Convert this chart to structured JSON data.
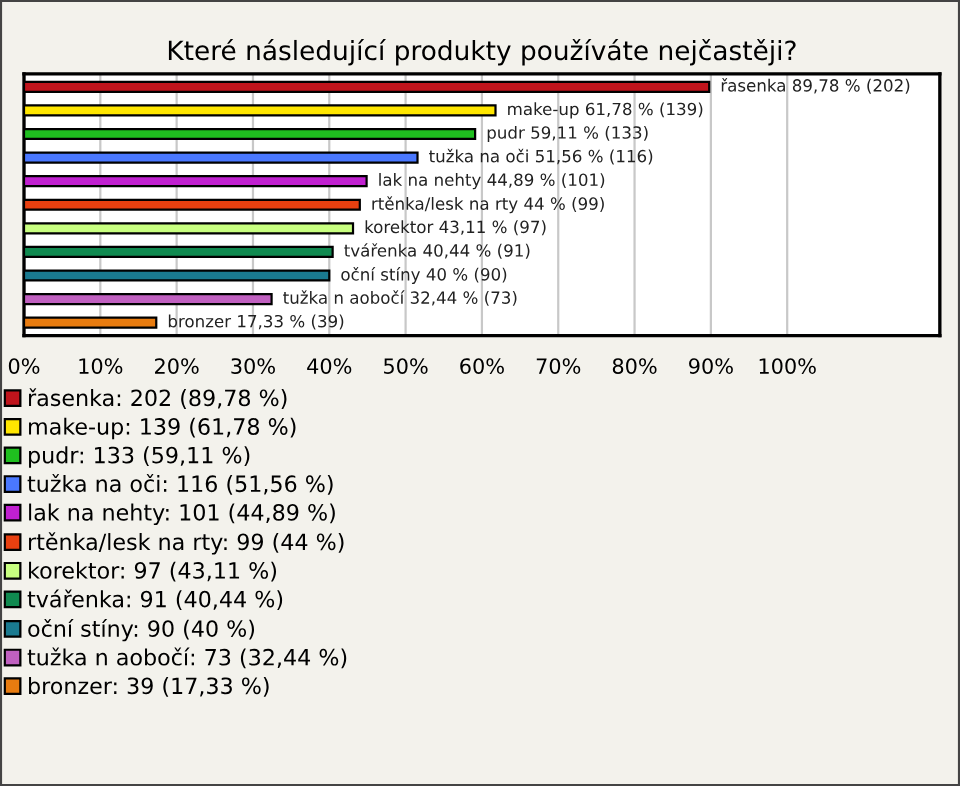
{
  "chart_data": {
    "type": "bar",
    "orientation": "horizontal",
    "title": "Které následující produkty používáte nejčastěji?",
    "categories": [
      null,
      null,
      null,
      null,
      null,
      null,
      null,
      null,
      null,
      null,
      null
    ],
    "series": [
      {
        "name": "řasenka: 202 (89,78 %)",
        "color": "#c0141c",
        "values": [
          89.78,
          null,
          null,
          null,
          null,
          null,
          null,
          null,
          null,
          null,
          null
        ],
        "value_labels": [
          "řasenka 89,78 % (202)",
          null,
          null,
          null,
          null,
          null,
          null,
          null,
          null,
          null,
          null
        ]
      },
      {
        "name": "make-up: 139 (61,78 %)",
        "color": "#ffe600",
        "values": [
          null,
          61.78,
          null,
          null,
          null,
          null,
          null,
          null,
          null,
          null,
          null
        ],
        "value_labels": [
          null,
          "make-up 61,78 % (139)",
          null,
          null,
          null,
          null,
          null,
          null,
          null,
          null,
          null
        ]
      },
      {
        "name": "pudr: 133 (59,11 %)",
        "color": "#1fbf1f",
        "values": [
          null,
          null,
          59.11,
          null,
          null,
          null,
          null,
          null,
          null,
          null,
          null
        ],
        "value_labels": [
          null,
          null,
          "pudr 59,11 % (133)",
          null,
          null,
          null,
          null,
          null,
          null,
          null,
          null
        ]
      },
      {
        "name": "tužka na oči: 116 (51,56 %)",
        "color": "#4a78ff",
        "values": [
          null,
          null,
          null,
          51.56,
          null,
          null,
          null,
          null,
          null,
          null,
          null
        ],
        "value_labels": [
          null,
          null,
          null,
          "tužka na oči 51,56 % (116)",
          null,
          null,
          null,
          null,
          null,
          null,
          null
        ]
      },
      {
        "name": "lak na nehty: 101 (44,89 %)",
        "color": "#c020d0",
        "values": [
          null,
          null,
          null,
          null,
          44.89,
          null,
          null,
          null,
          null,
          null,
          null
        ],
        "value_labels": [
          null,
          null,
          null,
          null,
          "lak na nehty 44,89 % (101)",
          null,
          null,
          null,
          null,
          null,
          null
        ]
      },
      {
        "name": "rtěnka/lesk na rty: 99 (44 %)",
        "color": "#e84010",
        "values": [
          null,
          null,
          null,
          null,
          null,
          44,
          null,
          null,
          null,
          null,
          null
        ],
        "value_labels": [
          null,
          null,
          null,
          null,
          null,
          "rtěnka/lesk na rty 44 % (99)",
          null,
          null,
          null,
          null,
          null
        ]
      },
      {
        "name": "korektor: 97 (43,11 %)",
        "color": "#c8ff80",
        "values": [
          null,
          null,
          null,
          null,
          null,
          null,
          43.11,
          null,
          null,
          null,
          null
        ],
        "value_labels": [
          null,
          null,
          null,
          null,
          null,
          null,
          "korektor 43,11 % (97)",
          null,
          null,
          null,
          null
        ]
      },
      {
        "name": "tvářenka: 91 (40,44 %)",
        "color": "#108a50",
        "values": [
          null,
          null,
          null,
          null,
          null,
          null,
          null,
          40.44,
          null,
          null,
          null
        ],
        "value_labels": [
          null,
          null,
          null,
          null,
          null,
          null,
          null,
          "tvářenka 40,44 % (91)",
          null,
          null,
          null
        ]
      },
      {
        "name": "oční stíny: 90 (40 %)",
        "color": "#1a7a90",
        "values": [
          null,
          null,
          null,
          null,
          null,
          null,
          null,
          null,
          40,
          null,
          null
        ],
        "value_labels": [
          null,
          null,
          null,
          null,
          null,
          null,
          null,
          null,
          "oční stíny 40 % (90)",
          null,
          null
        ]
      },
      {
        "name": "tužka n aobočí: 73 (32,44 %)",
        "color": "#c060c0",
        "values": [
          null,
          null,
          null,
          null,
          null,
          null,
          null,
          null,
          null,
          32.44,
          null
        ],
        "value_labels": [
          null,
          null,
          null,
          null,
          null,
          null,
          null,
          null,
          null,
          "tužka n aobočí 32,44 % (73)",
          null
        ]
      },
      {
        "name": "bronzer: 39 (17,33 %)",
        "color": "#e87c10",
        "values": [
          null,
          null,
          null,
          null,
          null,
          null,
          null,
          null,
          null,
          null,
          17.33
        ],
        "value_labels": [
          null,
          null,
          null,
          null,
          null,
          null,
          null,
          null,
          null,
          null,
          "bronzer 17,33 % (39)"
        ]
      }
    ],
    "xlim": [
      0,
      120
    ],
    "xticks": [
      {
        "value": 0,
        "label": "0%"
      },
      {
        "value": 10,
        "label": "10%"
      },
      {
        "value": 20,
        "label": "20%"
      },
      {
        "value": 30,
        "label": "30%"
      },
      {
        "value": 40,
        "label": "40%"
      },
      {
        "value": 50,
        "label": "50%"
      },
      {
        "value": 60,
        "label": "60%"
      },
      {
        "value": 70,
        "label": "70%"
      },
      {
        "value": 80,
        "label": "80%"
      },
      {
        "value": 90,
        "label": "90%"
      },
      {
        "value": 100,
        "label": "100%"
      }
    ],
    "grid": "x",
    "tick_labels": "x",
    "legend": "bottom"
  }
}
